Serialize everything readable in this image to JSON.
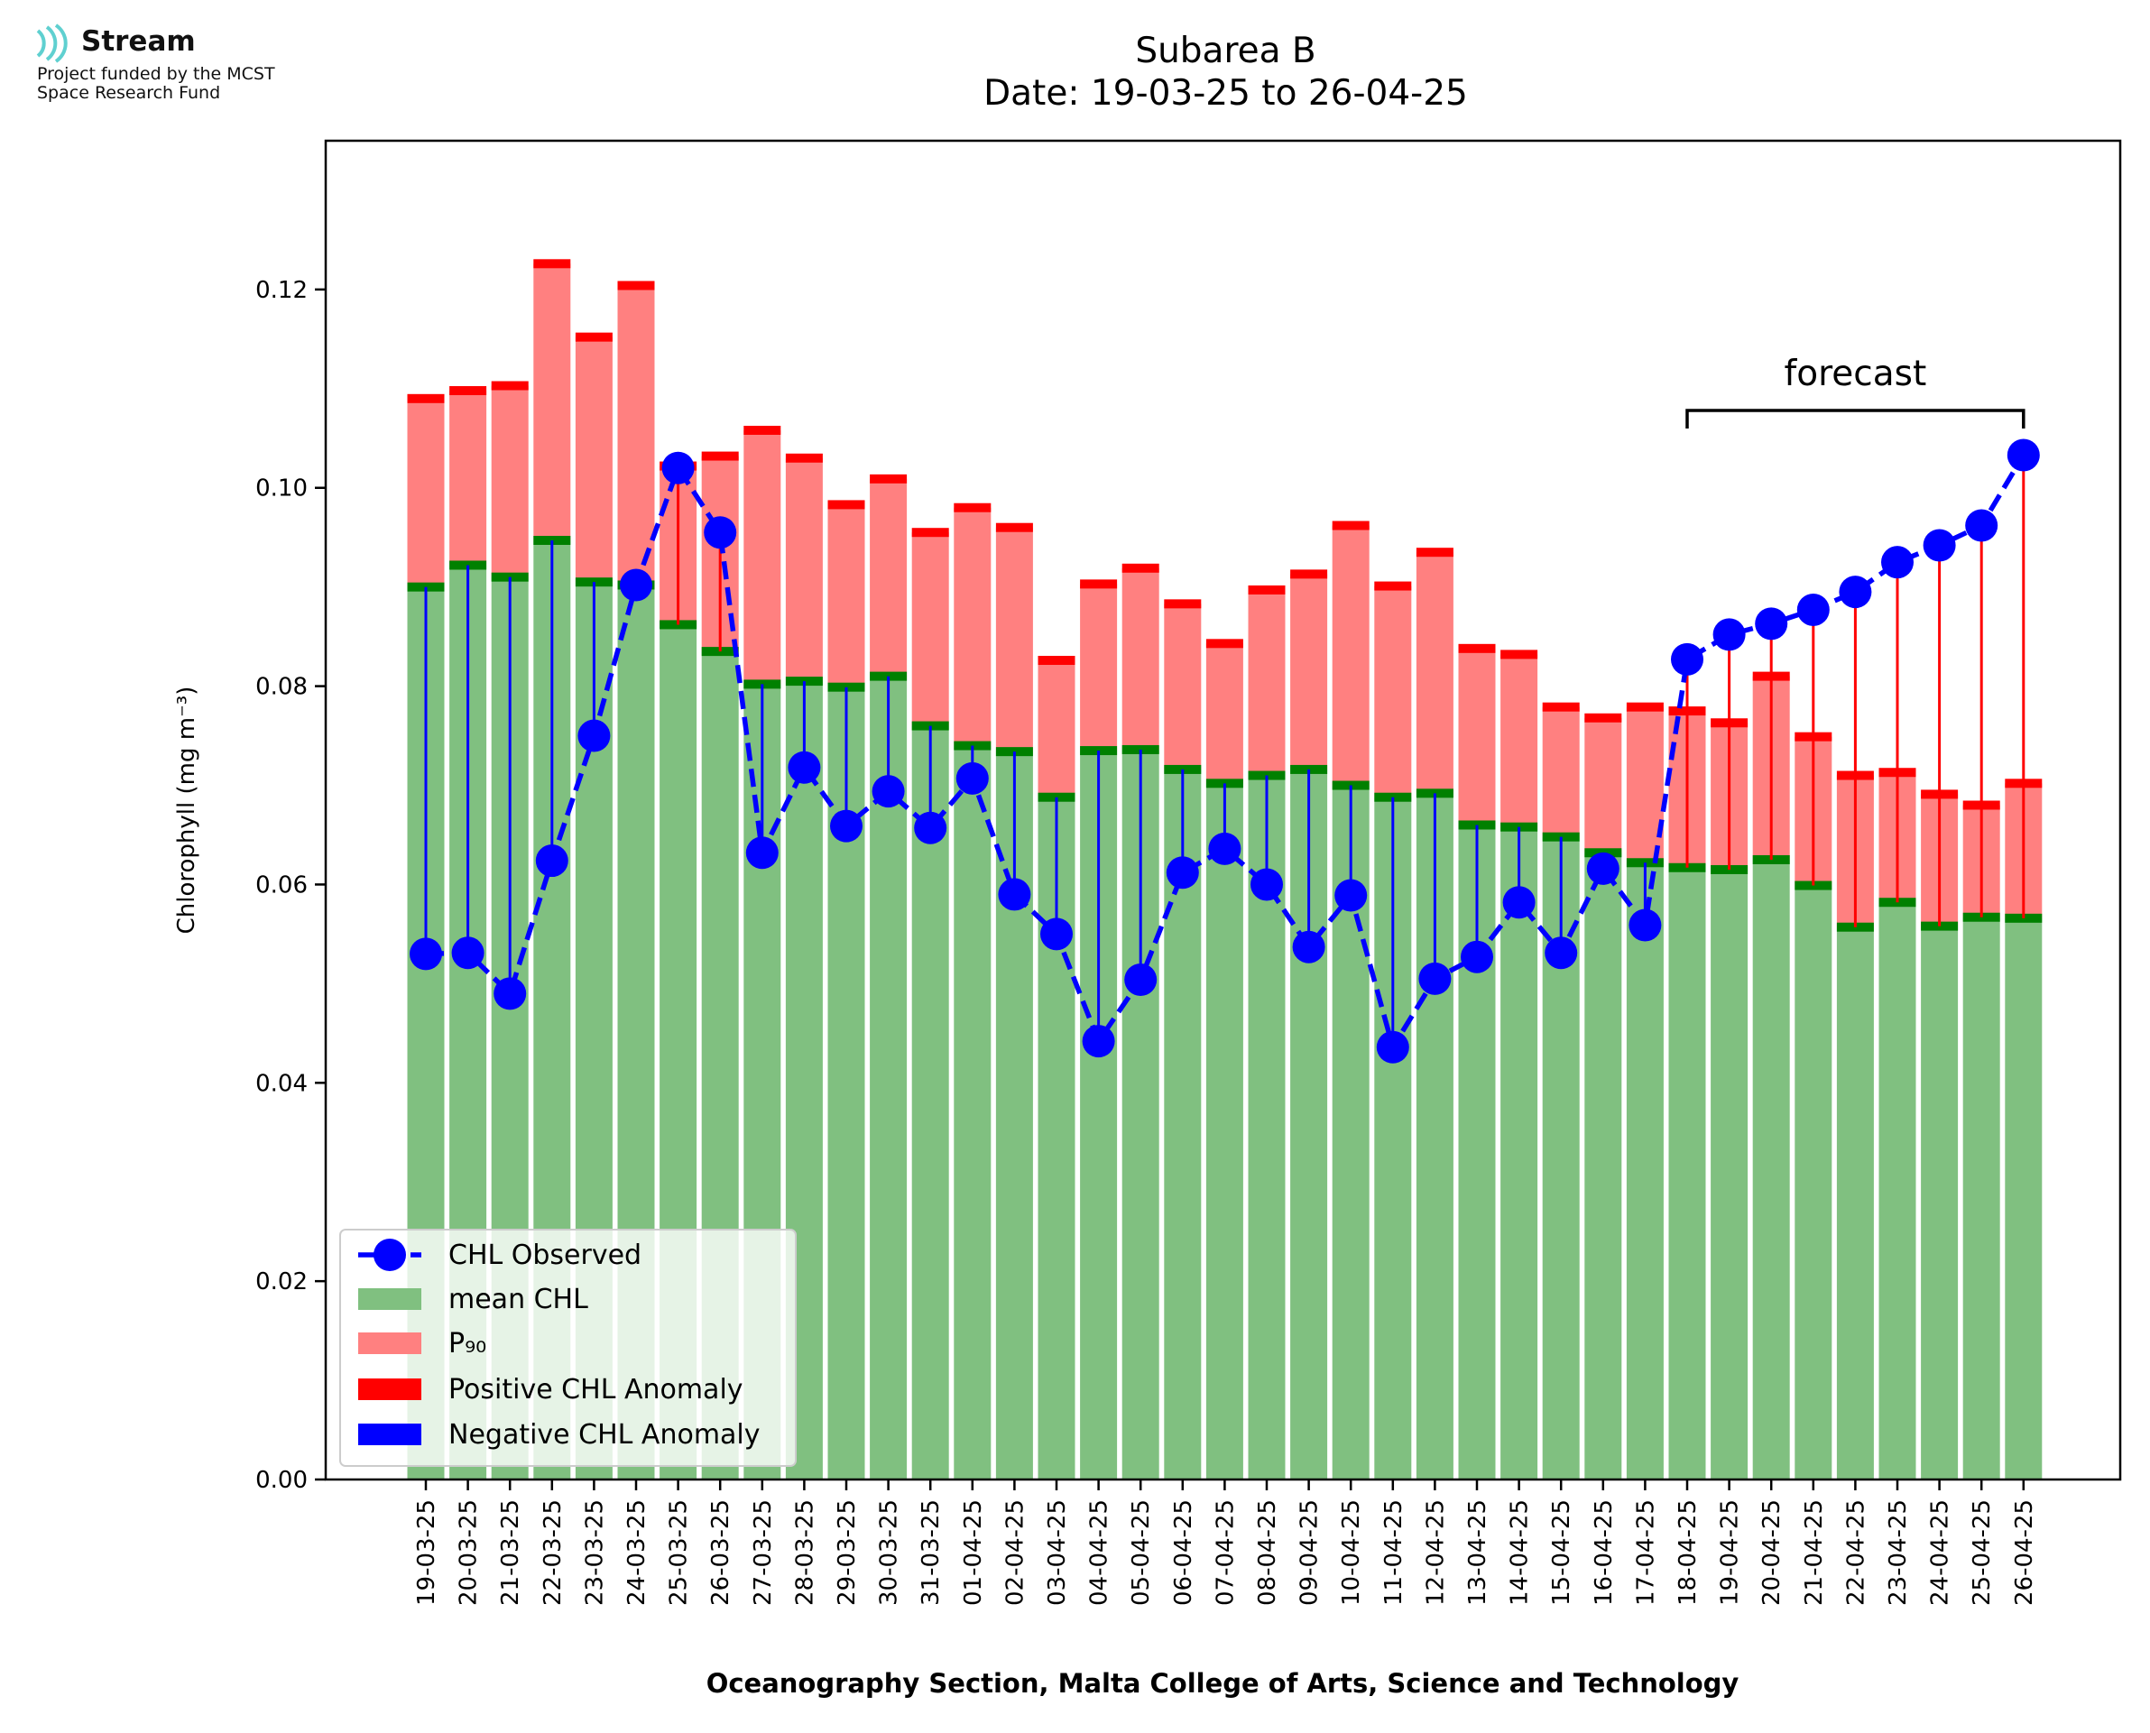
{
  "logo": {
    "name": "Stream",
    "line1": "Project funded by the MCST",
    "line2": "Space Research Fund"
  },
  "title": {
    "line1": "Subarea B",
    "line2": "Date: 19-03-25 to 26-04-25"
  },
  "colors": {
    "mean": "#80c080",
    "mean_edge": "#008000",
    "p90": "#ff8080",
    "p90_edge": "#ff0000",
    "observed": "#0000ff",
    "positive_anomaly": "#ff0000",
    "negative_anomaly": "#0000ff"
  },
  "chart_data": {
    "type": "bar",
    "title": "Subarea B\nDate: 19-03-25 to 26-04-25",
    "xlabel": "Oceanography Section, Malta College of Arts, Science and Technology",
    "ylabel": "Chlorophyll (mg m⁻³)",
    "ylim": [
      0,
      0.135
    ],
    "yticks": [
      "0.00",
      "0.02",
      "0.04",
      "0.06",
      "0.08",
      "0.10",
      "0.12"
    ],
    "grid": false,
    "legend_position": "lower-left",
    "categories": [
      "19-03-25",
      "20-03-25",
      "21-03-25",
      "22-03-25",
      "23-03-25",
      "24-03-25",
      "25-03-25",
      "26-03-25",
      "27-03-25",
      "28-03-25",
      "29-03-25",
      "30-03-25",
      "31-03-25",
      "01-04-25",
      "02-04-25",
      "03-04-25",
      "04-04-25",
      "05-04-25",
      "06-04-25",
      "07-04-25",
      "08-04-25",
      "09-04-25",
      "10-04-25",
      "11-04-25",
      "12-04-25",
      "13-04-25",
      "14-04-25",
      "15-04-25",
      "16-04-25",
      "17-04-25",
      "18-04-25",
      "19-04-25",
      "20-04-25",
      "21-04-25",
      "22-04-25",
      "23-04-25",
      "24-04-25",
      "25-04-25",
      "26-04-25"
    ],
    "series": [
      {
        "name": "CHL Observed",
        "kind": "line",
        "style": "dashed-with-markers",
        "values": [
          0.053,
          0.0531,
          0.049,
          0.0624,
          0.075,
          0.0902,
          0.102,
          0.0955,
          0.0632,
          0.0718,
          0.0659,
          0.0694,
          0.0657,
          0.0707,
          0.059,
          0.055,
          0.0442,
          0.0504,
          0.0612,
          0.0636,
          0.06,
          0.0537,
          0.0589,
          0.0436,
          0.0505,
          0.0527,
          0.0582,
          0.0531,
          0.0616,
          0.0559,
          0.0827,
          0.0852,
          0.0863,
          0.0877,
          0.0895,
          0.0925,
          0.0942,
          0.0962,
          0.1033
        ]
      },
      {
        "name": "mean CHL",
        "kind": "bar",
        "values": [
          0.09,
          0.0922,
          0.091,
          0.0947,
          0.0905,
          0.0902,
          0.0862,
          0.0835,
          0.0802,
          0.0805,
          0.0799,
          0.081,
          0.076,
          0.074,
          0.0734,
          0.0688,
          0.0735,
          0.0736,
          0.0716,
          0.0702,
          0.071,
          0.0716,
          0.07,
          0.0688,
          0.0692,
          0.066,
          0.0658,
          0.0648,
          0.0632,
          0.0622,
          0.0617,
          0.0615,
          0.0625,
          0.0599,
          0.0557,
          0.0582,
          0.0558,
          0.0567,
          0.0566
        ]
      },
      {
        "name": "P₉₀",
        "kind": "bar",
        "values": [
          0.109,
          0.1098,
          0.1103,
          0.1226,
          0.1152,
          0.1204,
          0.1022,
          0.1032,
          0.1058,
          0.103,
          0.0983,
          0.1009,
          0.0955,
          0.098,
          0.096,
          0.0826,
          0.0903,
          0.0919,
          0.0883,
          0.0843,
          0.0897,
          0.0913,
          0.0962,
          0.0901,
          0.0935,
          0.0838,
          0.0832,
          0.0779,
          0.0768,
          0.0779,
          0.0775,
          0.0763,
          0.081,
          0.0749,
          0.071,
          0.0713,
          0.0691,
          0.068,
          0.0702
        ]
      }
    ],
    "legend": [
      "CHL Observed",
      "mean CHL",
      "P₉₀",
      "Positive CHL Anomaly",
      "Negative CHL Anomaly"
    ],
    "annotation": {
      "text": "forecast",
      "from": "18-04-25",
      "to": "26-04-25"
    }
  }
}
